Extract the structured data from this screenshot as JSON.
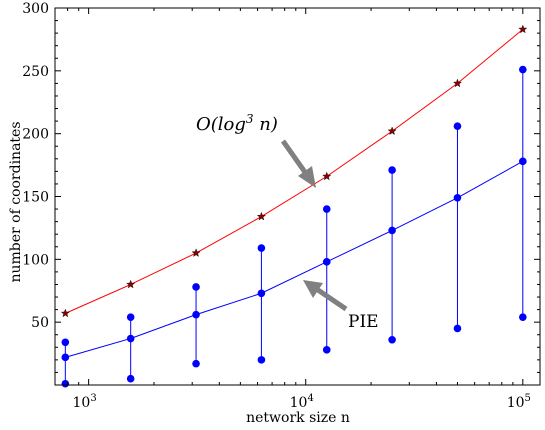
{
  "chart_data": {
    "type": "line",
    "x_scale": "log",
    "xlim": [
      700,
      120000
    ],
    "ylim": [
      0,
      300
    ],
    "xlabel": "network size n",
    "ylabel": "number of coordinates",
    "x_ticks": [
      {
        "value": 1000,
        "base": "10",
        "exp": "3"
      },
      {
        "value": 10000,
        "base": "10",
        "exp": "4"
      },
      {
        "value": 100000,
        "base": "10",
        "exp": "5"
      }
    ],
    "y_ticks": [
      50,
      100,
      150,
      200,
      250,
      300
    ],
    "grid": false,
    "series": [
      {
        "name": "O(log^3 n)",
        "color": "#ff0000",
        "marker": "star",
        "marker_color": "#8b0000",
        "x": [
          781,
          1562,
          3125,
          6250,
          12500,
          25000,
          50000,
          100000
        ],
        "y": [
          57,
          80,
          105,
          134,
          166,
          202,
          240,
          283
        ]
      },
      {
        "name": "PIE",
        "color": "#0000ff",
        "marker": "circle",
        "x": [
          781,
          1562,
          3125,
          6250,
          12500,
          25000,
          50000,
          100000
        ],
        "y": [
          22,
          37,
          56,
          73,
          98,
          123,
          149,
          178
        ],
        "y_min": [
          1,
          5,
          17,
          20,
          28,
          36,
          45,
          54
        ],
        "y_max": [
          34,
          54,
          78,
          109,
          140,
          171,
          206,
          251
        ]
      }
    ],
    "annotations": [
      {
        "text_main": "O(log",
        "text_sup": "3",
        "text_tail": " n)",
        "points_to": "red-series",
        "arrow_color": "#808080"
      },
      {
        "text": "PIE",
        "points_to": "blue-series",
        "arrow_color": "#808080"
      }
    ]
  }
}
